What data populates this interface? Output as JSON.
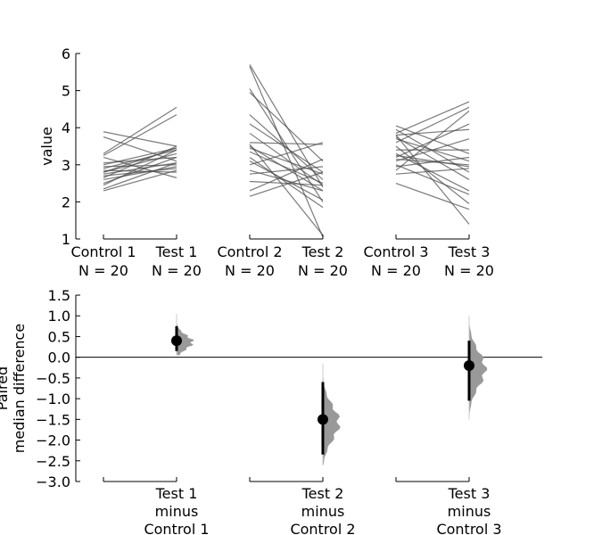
{
  "chart_data": [
    {
      "type": "line",
      "chart_kind": "paired slopegraph",
      "ylabel": "value",
      "ylim": [
        1,
        6
      ],
      "yticks": [
        1,
        2,
        3,
        4,
        5,
        6
      ],
      "line_color": "#4d4d4d",
      "groups": [
        {
          "control": "Control 1",
          "test": "Test 1",
          "control_n": "N = 20",
          "test_n": "N = 20",
          "pairs": [
            [
              3.89,
              3.5
            ],
            [
              3.75,
              3.1
            ],
            [
              3.3,
              4.55
            ],
            [
              3.25,
              4.35
            ],
            [
              3.2,
              2.65
            ],
            [
              3.05,
              3.2
            ],
            [
              3.0,
              3.45
            ],
            [
              2.95,
              3.0
            ],
            [
              2.9,
              3.4
            ],
            [
              2.85,
              2.8
            ],
            [
              2.8,
              3.45
            ],
            [
              2.8,
              3.3
            ],
            [
              2.75,
              3.05
            ],
            [
              2.7,
              2.9
            ],
            [
              2.65,
              3.5
            ],
            [
              2.6,
              2.95
            ],
            [
              2.5,
              3.2
            ],
            [
              2.45,
              3.4
            ],
            [
              2.35,
              3.05
            ],
            [
              2.3,
              2.85
            ]
          ]
        },
        {
          "control": "Control 2",
          "test": "Test 2",
          "control_n": "N = 20",
          "test_n": "N = 20",
          "pairs": [
            [
              5.7,
              2.4
            ],
            [
              5.65,
              1.05
            ],
            [
              5.05,
              2.0
            ],
            [
              4.95,
              3.1
            ],
            [
              4.35,
              2.6
            ],
            [
              4.1,
              2.8
            ],
            [
              3.85,
              2.45
            ],
            [
              3.6,
              3.55
            ],
            [
              3.55,
              1.1
            ],
            [
              3.5,
              2.3
            ],
            [
              3.45,
              2.75
            ],
            [
              3.35,
              2.5
            ],
            [
              3.2,
              1.85
            ],
            [
              3.1,
              2.05
            ],
            [
              3.0,
              3.6
            ],
            [
              2.85,
              2.3
            ],
            [
              2.75,
              2.95
            ],
            [
              2.55,
              2.45
            ],
            [
              2.3,
              3.15
            ],
            [
              2.15,
              2.8
            ]
          ]
        },
        {
          "control": "Control 3",
          "test": "Test 3",
          "control_n": "N = 20",
          "test_n": "N = 20",
          "pairs": [
            [
              4.05,
              3.3
            ],
            [
              3.95,
              2.8
            ],
            [
              3.85,
              4.7
            ],
            [
              3.8,
              1.4
            ],
            [
              3.8,
              3.95
            ],
            [
              3.75,
              2.6
            ],
            [
              3.7,
              3.1
            ],
            [
              3.6,
              4.55
            ],
            [
              3.5,
              1.95
            ],
            [
              3.4,
              3.4
            ],
            [
              3.3,
              2.3
            ],
            [
              3.25,
              2.95
            ],
            [
              3.2,
              4.1
            ],
            [
              3.15,
              3.0
            ],
            [
              3.1,
              3.7
            ],
            [
              3.0,
              2.2
            ],
            [
              2.95,
              3.2
            ],
            [
              2.85,
              4.45
            ],
            [
              2.75,
              2.9
            ],
            [
              2.5,
              1.8
            ]
          ]
        }
      ]
    },
    {
      "type": "scatter",
      "chart_kind": "bootstrap estimation plot",
      "ylabel_lines": [
        "Paired",
        "median difference"
      ],
      "ylim": [
        -3.0,
        1.5
      ],
      "yticks": [
        -3.0,
        -2.5,
        -2.0,
        -1.5,
        -1.0,
        -0.5,
        0.0,
        0.5,
        1.0,
        1.5
      ],
      "categories": [
        [
          "Test 1",
          "minus",
          "Control 1"
        ],
        [
          "Test 2",
          "minus",
          "Control 2"
        ],
        [
          "Test 3",
          "minus",
          "Control 3"
        ]
      ],
      "estimates": [
        0.4,
        -1.5,
        -0.2
      ],
      "ci": [
        [
          0.15,
          0.75
        ],
        [
          -2.35,
          -0.6
        ],
        [
          -1.05,
          0.4
        ]
      ],
      "distribution_range": [
        [
          0.05,
          1.05
        ],
        [
          -2.6,
          -0.15
        ],
        [
          -1.5,
          1.0
        ]
      ],
      "distribution_color": "#999999"
    }
  ]
}
